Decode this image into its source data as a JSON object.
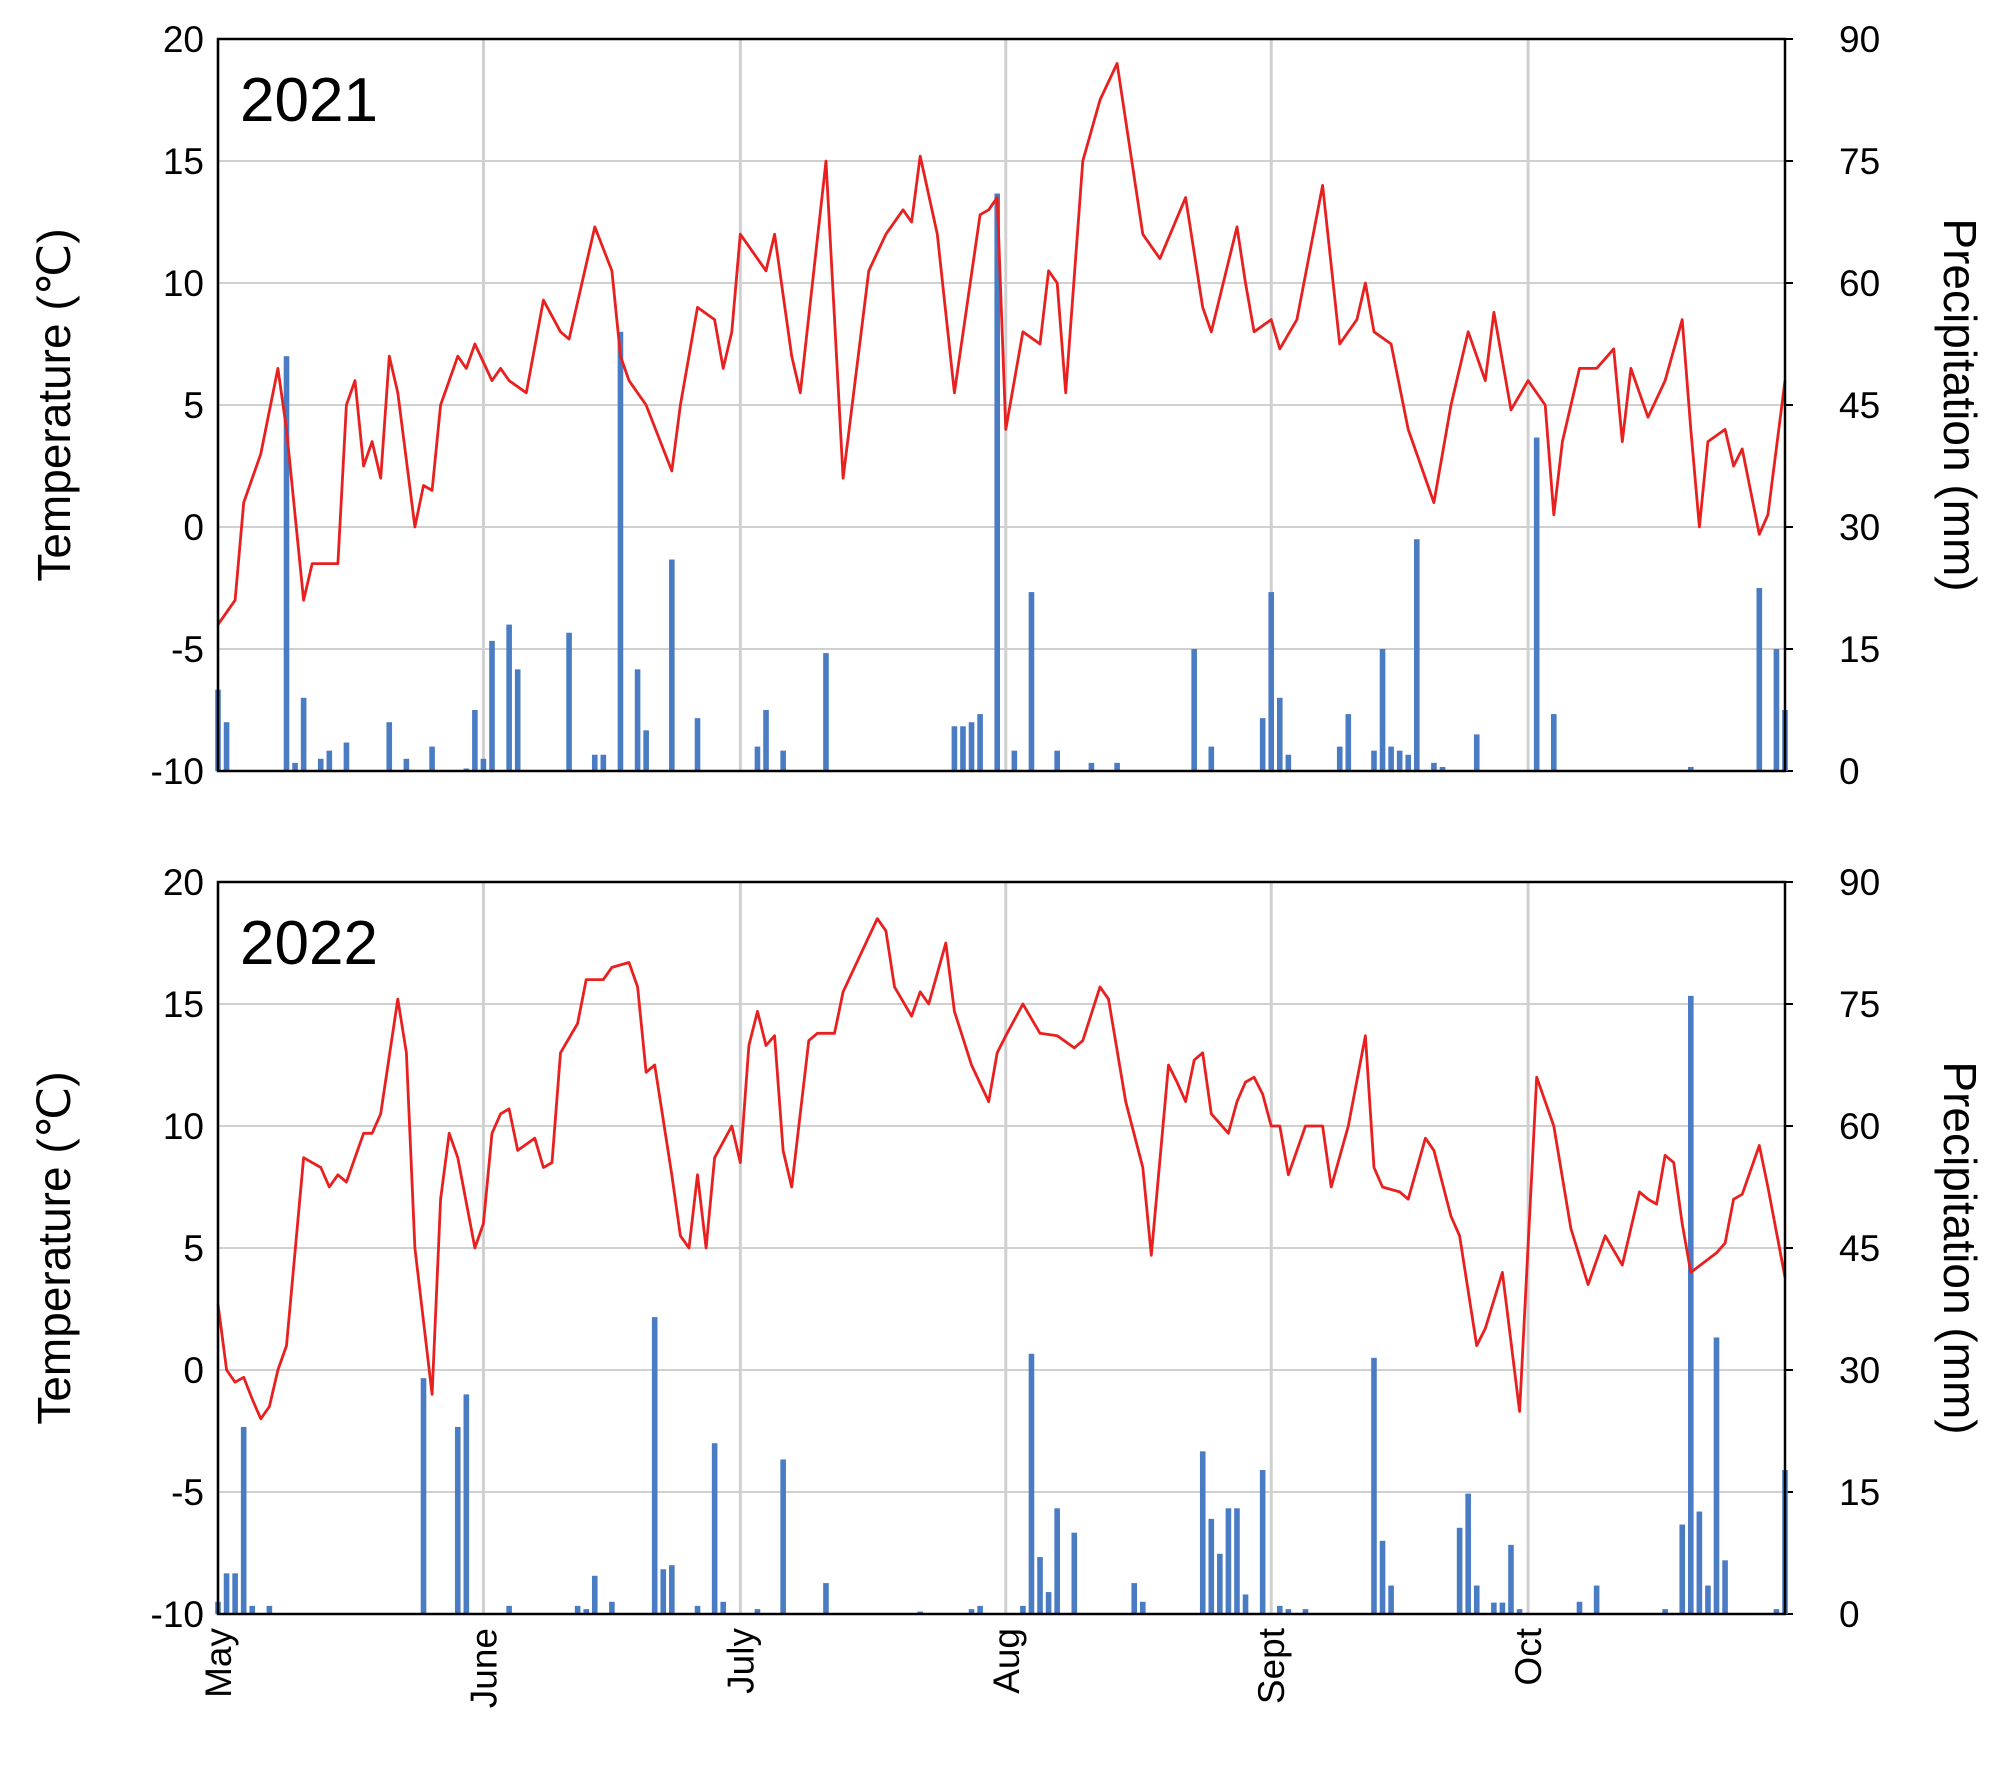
{
  "chart_data": [
    {
      "type": "combo",
      "title": "2021",
      "ylabel": "Temperature (℃)",
      "y2label": "Precipitation (mm)",
      "xlim": [
        0,
        183
      ],
      "xticks": [
        0,
        31,
        61,
        92,
        123,
        153
      ],
      "grid": "x-and-y",
      "ylim": [
        -10,
        20
      ],
      "yticks": [
        -10,
        -5,
        0,
        5,
        10,
        15,
        20
      ],
      "y2lim": [
        0,
        90
      ],
      "y2ticks": [
        0,
        15,
        30,
        45,
        60,
        75,
        90
      ],
      "series": [
        {
          "type": "line",
          "color": "#e8201f",
          "x": [
            0,
            2,
            3,
            5,
            7,
            8,
            10,
            11,
            14,
            15,
            16,
            17,
            18,
            19,
            20,
            21,
            23,
            24,
            25,
            26,
            28,
            29,
            30,
            32,
            33,
            34,
            36,
            38,
            40,
            41,
            44,
            46,
            47,
            48,
            50,
            53,
            54,
            56,
            58,
            59,
            60,
            61,
            64,
            65,
            67,
            68,
            71,
            73,
            76,
            78,
            80,
            81,
            82,
            84,
            86,
            89,
            90,
            91,
            92,
            94,
            96,
            97,
            98,
            99,
            101,
            103,
            105,
            108,
            109,
            110,
            113,
            115,
            116,
            119,
            120,
            121,
            123,
            124,
            126,
            129,
            131,
            133,
            134,
            135,
            137,
            139,
            142,
            144,
            146,
            148,
            149,
            151,
            153,
            155,
            156,
            157,
            159,
            161,
            163,
            164,
            165,
            167,
            169,
            171,
            172,
            173,
            174,
            176,
            177,
            178,
            180,
            181,
            183
          ],
          "values": [
            -4,
            -3,
            1,
            3,
            6.5,
            4,
            -3,
            -1.5,
            -1.5,
            5,
            6,
            2.5,
            3.5,
            2,
            7,
            5.5,
            0,
            1.7,
            1.5,
            5,
            7,
            6.5,
            7.5,
            6,
            6.5,
            6,
            5.5,
            9.3,
            8,
            7.7,
            12.3,
            10.5,
            7,
            6,
            5,
            2.3,
            5,
            9,
            8.5,
            6.5,
            8,
            12,
            10.5,
            12,
            7,
            5.5,
            15,
            2,
            10.5,
            12,
            13,
            12.5,
            15.2,
            12,
            5.5,
            12.8,
            13,
            13.5,
            4,
            8,
            7.5,
            10.5,
            10,
            5.5,
            15,
            17.5,
            19,
            12,
            11.5,
            11,
            13.5,
            9,
            8,
            12.3,
            10,
            8,
            8.5,
            7.3,
            8.5,
            14,
            7.5,
            8.5,
            10,
            8,
            7.5,
            4,
            1,
            5,
            8,
            6,
            8.8,
            4.8,
            6,
            5,
            0.5,
            3.5,
            6.5,
            6.5,
            7.3,
            3.5,
            6.5,
            4.5,
            6,
            8.5,
            4,
            0,
            3.5,
            4,
            2.5,
            3.2,
            -0.3,
            0.5,
            6
          ]
        },
        {
          "type": "bar",
          "axis": "y2",
          "color": "#4a7cc4",
          "x": [
            0,
            1,
            8,
            9,
            10,
            12,
            13,
            15,
            20,
            22,
            25,
            29,
            30,
            31,
            32,
            34,
            35,
            41,
            44,
            45,
            47,
            49,
            50,
            53,
            56,
            63,
            64,
            66,
            71,
            86,
            87,
            88,
            89,
            91,
            93,
            95,
            98,
            102,
            105,
            114,
            116,
            122,
            123,
            124,
            125,
            131,
            132,
            135,
            136,
            137,
            138,
            139,
            140,
            142,
            143,
            147,
            154,
            156,
            172,
            180,
            182,
            183
          ],
          "values": [
            10,
            6,
            51,
            1,
            9,
            1.5,
            2.5,
            3.5,
            6,
            1.5,
            3,
            0.3,
            7.5,
            1.5,
            16,
            18,
            12.5,
            17,
            2,
            2,
            54,
            12.5,
            5,
            26,
            6.5,
            3,
            7.5,
            2.5,
            14.5,
            5.5,
            5.5,
            6,
            7,
            71,
            2.5,
            22,
            2.5,
            1,
            1,
            15,
            3,
            6.5,
            22,
            9,
            2,
            3,
            7,
            2.5,
            15,
            3,
            2.5,
            2,
            28.5,
            1,
            0.5,
            4.5,
            41,
            7,
            0.5,
            22.5,
            15,
            7.5
          ]
        }
      ]
    },
    {
      "type": "combo",
      "title": "2022",
      "ylabel": "Temperature (℃)",
      "y2label": "Precipitation (mm)",
      "xlim": [
        0,
        183
      ],
      "xticks": [
        {
          "value": 0,
          "label": "May"
        },
        {
          "value": 31,
          "label": "June"
        },
        {
          "value": 61,
          "label": "July"
        },
        {
          "value": 92,
          "label": "Aug"
        },
        {
          "value": 123,
          "label": "Sept"
        },
        {
          "value": 153,
          "label": "Oct"
        }
      ],
      "grid": "x-and-y",
      "ylim": [
        -10,
        20
      ],
      "yticks": [
        -10,
        -5,
        0,
        5,
        10,
        15,
        20
      ],
      "y2lim": [
        0,
        90
      ],
      "y2ticks": [
        0,
        15,
        30,
        45,
        60,
        75,
        90
      ],
      "series": [
        {
          "type": "line",
          "color": "#e8201f",
          "x": [
            0,
            1,
            2,
            3,
            4,
            5,
            6,
            7,
            8,
            10,
            12,
            13,
            14,
            15,
            17,
            18,
            19,
            21,
            22,
            23,
            25,
            26,
            27,
            28,
            30,
            31,
            32,
            33,
            34,
            35,
            37,
            38,
            39,
            40,
            42,
            43,
            45,
            46,
            48,
            49,
            50,
            51,
            53,
            54,
            55,
            56,
            57,
            58,
            60,
            61,
            62,
            63,
            64,
            65,
            66,
            67,
            69,
            70,
            72,
            73,
            77,
            78,
            79,
            81,
            82,
            83,
            85,
            86,
            88,
            90,
            91,
            92,
            94,
            96,
            98,
            100,
            101,
            103,
            104,
            106,
            108,
            109,
            111,
            112,
            113,
            114,
            115,
            116,
            118,
            119,
            120,
            121,
            122,
            123,
            124,
            125,
            127,
            129,
            130,
            132,
            134,
            135,
            136,
            138,
            139,
            141,
            142,
            144,
            145,
            147,
            148,
            150,
            152,
            154,
            156,
            158,
            160,
            162,
            164,
            166,
            167,
            168,
            169,
            170,
            171,
            172,
            175,
            176,
            177,
            178,
            180,
            181,
            183
          ],
          "values": [
            2.7,
            0,
            -0.5,
            -0.3,
            -1.2,
            -2,
            -1.5,
            0,
            1,
            8.7,
            8.3,
            7.5,
            8,
            7.7,
            9.7,
            9.7,
            10.5,
            15.2,
            13,
            5,
            -1,
            7,
            9.7,
            8.7,
            5,
            6,
            9.7,
            10.5,
            10.7,
            9,
            9.5,
            8.3,
            8.5,
            13,
            14.2,
            16,
            16,
            16.5,
            16.7,
            15.7,
            12.2,
            12.5,
            8,
            5.5,
            5,
            8,
            5,
            8.7,
            10,
            8.5,
            13.3,
            14.7,
            13.3,
            13.7,
            9,
            7.5,
            13.5,
            13.8,
            13.8,
            15.5,
            18.5,
            18,
            15.7,
            14.5,
            15.5,
            15,
            17.5,
            14.7,
            12.5,
            11,
            13,
            13.7,
            15,
            13.8,
            13.7,
            13.2,
            13.5,
            15.7,
            15.2,
            11,
            8.3,
            4.7,
            12.5,
            11.8,
            11,
            12.7,
            13,
            10.5,
            9.7,
            11,
            11.8,
            12,
            11.3,
            10,
            10,
            8,
            10,
            10,
            7.5,
            10,
            13.7,
            8.3,
            7.5,
            7.3,
            7,
            9.5,
            9,
            6.3,
            5.5,
            1,
            1.7,
            4,
            -1.7,
            12,
            10,
            5.8,
            3.5,
            5.5,
            4.3,
            7.3,
            7,
            6.8,
            8.8,
            8.5,
            6,
            4,
            4.8,
            5.2,
            7,
            7.2,
            9.2,
            7.5,
            3.8
          ]
        },
        {
          "type": "bar",
          "axis": "y2",
          "color": "#4a7cc4",
          "x": [
            0,
            1,
            2,
            3,
            4,
            6,
            24,
            28,
            29,
            34,
            42,
            43,
            44,
            46,
            51,
            52,
            53,
            56,
            58,
            59,
            63,
            66,
            71,
            82,
            88,
            89,
            94,
            95,
            96,
            97,
            98,
            100,
            107,
            108,
            115,
            116,
            117,
            118,
            119,
            120,
            122,
            124,
            125,
            127,
            135,
            136,
            137,
            145,
            146,
            147,
            149,
            150,
            151,
            152,
            159,
            161,
            169,
            171,
            172,
            173,
            174,
            175,
            176,
            182,
            183
          ],
          "values": [
            1.5,
            5,
            5,
            23,
            1,
            1,
            29,
            23,
            27,
            1,
            1,
            0.6,
            4.7,
            1.5,
            36.5,
            5.5,
            6,
            1,
            21,
            1.5,
            0.6,
            19,
            3.8,
            0.3,
            0.6,
            1,
            1,
            32,
            7,
            2.7,
            13,
            10,
            3.8,
            1.5,
            20,
            11.7,
            7.4,
            13,
            13,
            2.4,
            17.7,
            1,
            0.6,
            0.6,
            31.5,
            9,
            3.5,
            10.6,
            14.8,
            3.5,
            1.4,
            1.4,
            8.5,
            0.6,
            1.5,
            3.5,
            0.6,
            11,
            76,
            12.6,
            3.5,
            34,
            6.6,
            0.6,
            17.7
          ]
        }
      ]
    }
  ]
}
